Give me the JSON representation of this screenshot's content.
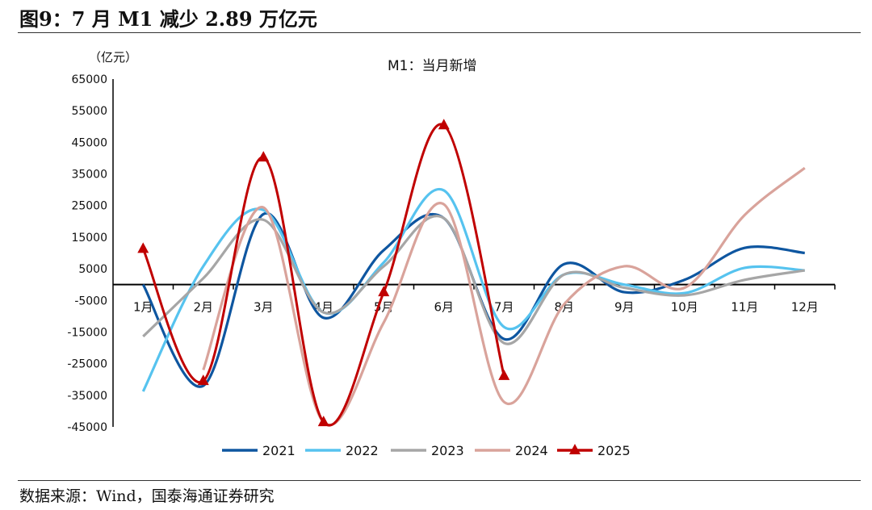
{
  "title": "图9：7 月 M1 减少 2.89 万亿元",
  "source": "数据来源：Wind，国泰海通证券研究",
  "chart_data": {
    "type": "line",
    "title": "M1：当月新增",
    "ylabel": "（亿元）",
    "xlabel": "",
    "categories": [
      "1月",
      "2月",
      "3月",
      "4月",
      "5月",
      "6月",
      "7月",
      "8月",
      "9月",
      "10月",
      "11月",
      "12月"
    ],
    "ylim": [
      -45000,
      65000
    ],
    "yticks": [
      65000,
      55000,
      45000,
      35000,
      25000,
      15000,
      5000,
      -5000,
      -15000,
      -25000,
      -35000,
      -45000
    ],
    "grid": false,
    "legend_position": "bottom",
    "series": [
      {
        "name": "2021",
        "color": "#0e56a0",
        "marker": "none",
        "values": [
          0,
          -32000,
          22300,
          -10500,
          10900,
          21000,
          -17200,
          6500,
          -2400,
          1500,
          11600,
          10000
        ]
      },
      {
        "name": "2022",
        "color": "#56c3ef",
        "marker": "none",
        "values": [
          -33800,
          5800,
          23600,
          -8800,
          7000,
          29800,
          -13400,
          3200,
          0,
          -2700,
          5300,
          4500
        ]
      },
      {
        "name": "2023",
        "color": "#a6a6a6",
        "marker": "none",
        "values": [
          -16400,
          2000,
          20500,
          -8800,
          5800,
          21000,
          -18500,
          3200,
          -1000,
          -3400,
          1500,
          4500
        ]
      },
      {
        "name": "2024",
        "color": "#d9a39b",
        "marker": "none",
        "values": [
          null,
          -27000,
          24400,
          -43500,
          -12000,
          25400,
          -37100,
          -6200,
          5800,
          -1000,
          22000,
          36900
        ]
      },
      {
        "name": "2025",
        "color": "#c00000",
        "marker": "triangle",
        "values": [
          11300,
          -30500,
          40200,
          -43500,
          -2400,
          50400,
          -28900,
          null,
          null,
          null,
          null,
          null
        ]
      }
    ]
  }
}
